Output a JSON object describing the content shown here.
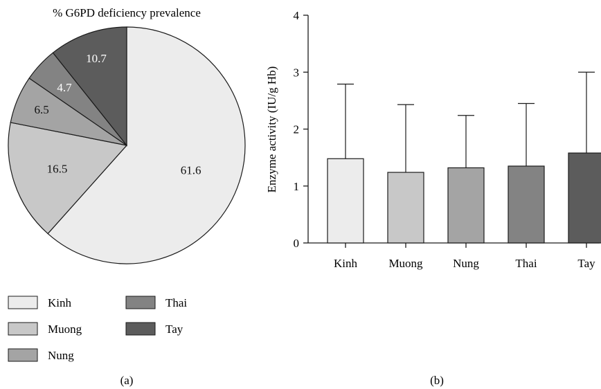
{
  "chart_data": [
    {
      "type": "pie",
      "title": "% G6PD deficiency prevalence",
      "slices": [
        {
          "name": "Kinh",
          "value": 61.6,
          "label": "61.6",
          "color": "#ececec",
          "label_color": "#111111"
        },
        {
          "name": "Muong",
          "value": 16.5,
          "label": "16.5",
          "color": "#c8c8c8",
          "label_color": "#111111"
        },
        {
          "name": "Nung",
          "value": 6.5,
          "label": "6.5",
          "color": "#a4a4a4",
          "label_color": "#111111"
        },
        {
          "name": "Thai",
          "value": 4.7,
          "label": "4.7",
          "color": "#838383",
          "label_color": "#ffffff"
        },
        {
          "name": "Tay",
          "value": 10.7,
          "label": "10.7",
          "color": "#5c5c5c",
          "label_color": "#ffffff"
        }
      ],
      "legend": [
        "Kinh",
        "Thai",
        "Muong",
        "Tay",
        "Nung"
      ],
      "panel_label": "(a)"
    },
    {
      "type": "bar",
      "categories": [
        "Kinh",
        "Muong",
        "Nung",
        "Thai",
        "Tay"
      ],
      "values": [
        1.48,
        1.24,
        1.32,
        1.35,
        1.58
      ],
      "error_upper": [
        2.79,
        2.43,
        2.24,
        2.45,
        3.0
      ],
      "colors": [
        "#ececec",
        "#c8c8c8",
        "#a4a4a4",
        "#838383",
        "#5c5c5c"
      ],
      "xlabel": "",
      "ylabel": "Enzyme activity (IU/g Hb)",
      "ylim": [
        0,
        4
      ],
      "yticks": [
        "0",
        "1",
        "2",
        "3",
        "4"
      ],
      "panel_label": "(b)"
    }
  ]
}
